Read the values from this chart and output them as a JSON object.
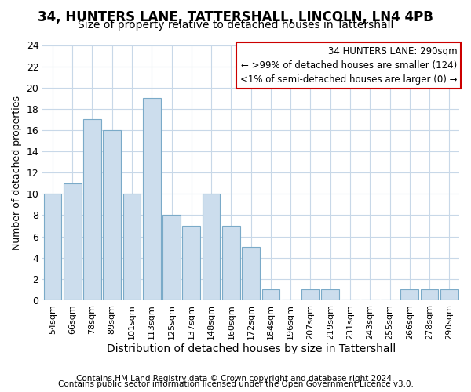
{
  "title": "34, HUNTERS LANE, TATTERSHALL, LINCOLN, LN4 4PB",
  "subtitle": "Size of property relative to detached houses in Tattershall",
  "xlabel": "Distribution of detached houses by size in Tattershall",
  "ylabel": "Number of detached properties",
  "categories": [
    "54sqm",
    "66sqm",
    "78sqm",
    "89sqm",
    "101sqm",
    "113sqm",
    "125sqm",
    "137sqm",
    "148sqm",
    "160sqm",
    "172sqm",
    "184sqm",
    "196sqm",
    "207sqm",
    "219sqm",
    "231sqm",
    "243sqm",
    "255sqm",
    "266sqm",
    "278sqm",
    "290sqm"
  ],
  "values": [
    10,
    11,
    17,
    16,
    10,
    19,
    8,
    7,
    10,
    7,
    5,
    1,
    0,
    1,
    1,
    0,
    0,
    0,
    1,
    1,
    1
  ],
  "bar_color": "#ccdded",
  "bar_edge_color": "#7aaac8",
  "annotation_box_color": "#cc0000",
  "annotation_line1": "34 HUNTERS LANE: 290sqm",
  "annotation_line2": "← >99% of detached houses are smaller (124)",
  "annotation_line3": "<1% of semi-detached houses are larger (0) →",
  "ylim": [
    0,
    24
  ],
  "yticks": [
    0,
    2,
    4,
    6,
    8,
    10,
    12,
    14,
    16,
    18,
    20,
    22,
    24
  ],
  "grid_color": "#c8d8e8",
  "bg_color": "#ffffff",
  "footer_line1": "Contains HM Land Registry data © Crown copyright and database right 2024.",
  "footer_line2": "Contains public sector information licensed under the Open Government Licence v3.0.",
  "title_fontsize": 12,
  "subtitle_fontsize": 10,
  "xlabel_fontsize": 10,
  "ylabel_fontsize": 9,
  "ytick_fontsize": 9,
  "xtick_fontsize": 8,
  "annotation_fontsize": 8.5,
  "footer_fontsize": 7.5
}
